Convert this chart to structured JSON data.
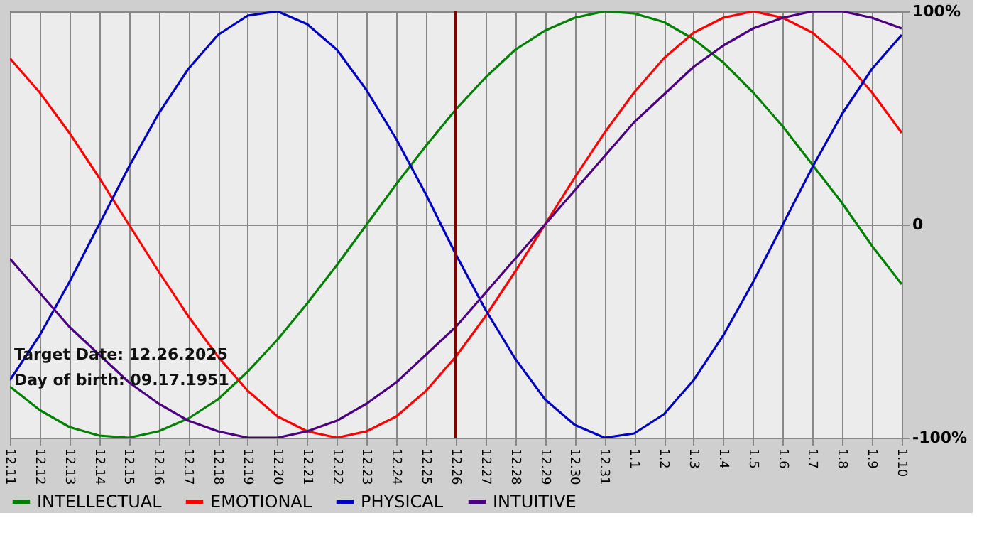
{
  "chart_data": {
    "type": "line",
    "categories": [
      "12.11",
      "12.12",
      "12.13",
      "12.14",
      "12.15",
      "12.16",
      "12.17",
      "12.18",
      "12.19",
      "12.20",
      "12.21",
      "12.22",
      "12.23",
      "12.24",
      "12.25",
      "12.26",
      "12.27",
      "12.28",
      "12.29",
      "12.30",
      "12.31",
      "1.1",
      "1.2",
      "1.3",
      "1.4",
      "1.5",
      "1.6",
      "1.7",
      "1.8",
      "1.9",
      "1.10"
    ],
    "series": [
      {
        "name": "INTELLECTUAL",
        "color": "#008000",
        "values": [
          -76,
          -87,
          -95,
          -99,
          -100,
          -97,
          -91,
          -82,
          -69,
          -54,
          -37,
          -19,
          0,
          19,
          37,
          54,
          69,
          82,
          91,
          97,
          100,
          99,
          95,
          87,
          76,
          62,
          46,
          28,
          10,
          -10,
          -28
        ]
      },
      {
        "name": "EMOTIONAL",
        "color": "#ff0000",
        "values": [
          78,
          62,
          43,
          22,
          0,
          -22,
          -43,
          -62,
          -78,
          -90,
          -97,
          -100,
          -97,
          -90,
          -78,
          -62,
          -43,
          -22,
          0,
          22,
          43,
          62,
          78,
          90,
          97,
          100,
          97,
          90,
          78,
          62,
          43
        ]
      },
      {
        "name": "PHYSICAL",
        "color": "#0000c0",
        "values": [
          -73,
          -52,
          -27,
          0,
          27,
          52,
          73,
          89,
          98,
          100,
          94,
          82,
          63,
          40,
          14,
          -14,
          -40,
          -63,
          -82,
          -94,
          -100,
          -98,
          -89,
          -73,
          -52,
          -27,
          0,
          27,
          52,
          73,
          89
        ]
      },
      {
        "name": "INTUITIVE",
        "color": "#4b0082",
        "values": [
          -16,
          -32,
          -48,
          -61,
          -74,
          -84,
          -92,
          -97,
          -100,
          -100,
          -97,
          -92,
          -84,
          -74,
          -61,
          -48,
          -32,
          -16,
          0,
          16,
          32,
          48,
          61,
          74,
          84,
          92,
          97,
          100,
          100,
          97,
          92
        ]
      }
    ],
    "ylim": [
      -100,
      100
    ],
    "yticks": [
      {
        "value": -100,
        "label": "-100%"
      },
      0,
      {
        "value": 100,
        "label": "100%"
      }
    ],
    "ref_lines": [
      {
        "axis": "x",
        "value": "12.26",
        "color": "#800000"
      }
    ],
    "annotations": [
      "Target Date: 12.26.2025",
      "Day of birth: 09.17.1951"
    ],
    "grid": true,
    "legend": "bottom",
    "marker": "none",
    "line_style": "solid"
  }
}
